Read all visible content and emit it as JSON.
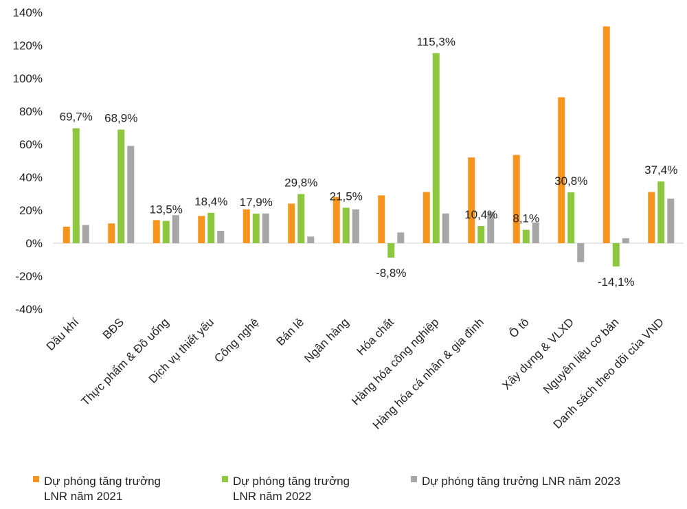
{
  "chart_data": {
    "type": "bar",
    "ylim": [
      -40,
      140
    ],
    "ytick_step": 20,
    "yticks": [
      "140%",
      "120%",
      "100%",
      "80%",
      "60%",
      "40%",
      "20%",
      "0%",
      "-20%",
      "-40%"
    ],
    "grid": false,
    "legend_position": "bottom",
    "categories": [
      "Dầu khí",
      "BĐS",
      "Thực phẩm & Đồ uống",
      "Dịch vụ thiết yếu",
      "Công nghệ",
      "Bán lẻ",
      "Ngân hàng",
      "Hóa chất",
      "Hàng hóa công nghiệp",
      "Hàng hóa cá nhân & gia đình",
      "Ô tô",
      "Xây dựng & VLXD",
      "Nguyên liệu cơ bản",
      "Danh sách theo dõi của VND"
    ],
    "series": [
      {
        "name": "Dự phóng tăng trưởng LNR năm 2021",
        "legend_lines": [
          "Dự phóng tăng trưởng",
          "LNR năm 2021"
        ],
        "color": "#F7941D",
        "values": [
          10,
          12,
          14,
          16.5,
          20.5,
          24,
          28,
          29,
          31,
          52,
          53.5,
          88.5,
          131.5,
          31
        ]
      },
      {
        "name": "Dự phóng tăng trưởng LNR năm 2022",
        "legend_lines": [
          "Dự phóng tăng trưởng",
          "LNR năm 2022"
        ],
        "color": "#8DC63F",
        "values": [
          69.7,
          68.9,
          13.5,
          18.4,
          17.9,
          29.8,
          21.5,
          -8.8,
          115.3,
          10.4,
          8.1,
          30.8,
          -14.1,
          37.4
        ],
        "data_labels": [
          "69,7%",
          "68,9%",
          "13,5%",
          "18,4%",
          "17,9%",
          "29,8%",
          "21,5%",
          "-8,8%",
          "115,3%",
          "10,4%",
          "8,1%",
          "30,8%",
          "-14,1%",
          "37,4%"
        ]
      },
      {
        "name": "Dự phóng tăng trưởng LNR năm 2023",
        "legend_lines": [
          "Dự phóng tăng trưởng LNR năm 2023"
        ],
        "color": "#A6A6A6",
        "values": [
          11,
          59,
          17,
          7.5,
          18,
          4,
          20.5,
          6.5,
          18,
          19,
          12.5,
          -11.5,
          3,
          27
        ]
      }
    ]
  }
}
